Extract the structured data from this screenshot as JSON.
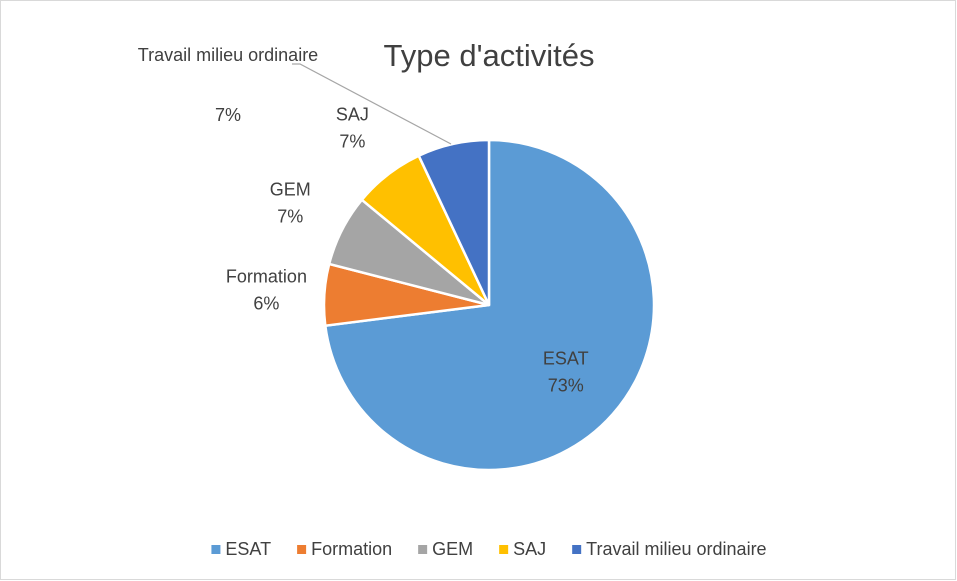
{
  "chart_data": {
    "type": "pie",
    "title": "Type d'activités",
    "categories": [
      "ESAT",
      "Formation",
      "GEM",
      "SAJ",
      "Travail milieu ordinaire"
    ],
    "values": [
      73,
      6,
      7,
      7,
      7
    ],
    "value_labels": [
      "73%",
      "6%",
      "7%",
      "7%",
      "7%"
    ],
    "colors": [
      "#5b9bd5",
      "#ed7d31",
      "#a5a5a5",
      "#ffc000",
      "#4472c4"
    ],
    "legend": "bottom"
  }
}
